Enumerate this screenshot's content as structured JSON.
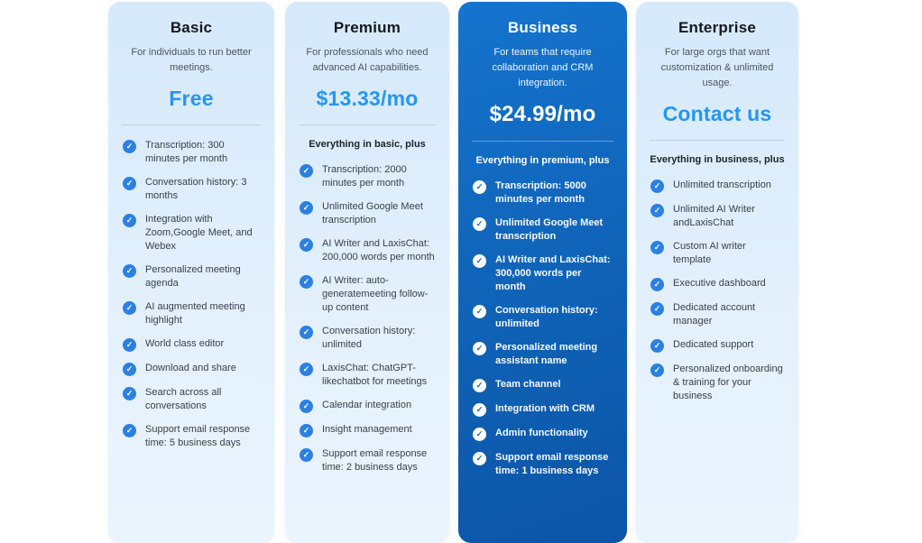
{
  "colors": {
    "accent_blue": "#2596f2",
    "check_circle_blue": "#2b80e4",
    "highlight_gradient_start": "#1574ce",
    "highlight_gradient_end": "#0c55a7",
    "card_background": "#ddedfb"
  },
  "plans": [
    {
      "id": "basic",
      "title": "Basic",
      "description": "For individuals to run better meetings.",
      "price": "Free",
      "includes_note": "",
      "highlighted": false,
      "features": [
        "Transcription: 300 minutes per month",
        "Conversation history: 3 months",
        "Integration with Zoom,Google Meet, and Webex",
        "Personalized meeting agenda",
        "AI augmented meeting highlight",
        "World class editor",
        "Download and share",
        "Search across all conversations",
        "Support email response time: 5 business days"
      ]
    },
    {
      "id": "premium",
      "title": "Premium",
      "description": "For professionals who need advanced AI capabilities.",
      "price": "$13.33/mo",
      "includes_note": "Everything in basic, plus",
      "highlighted": false,
      "features": [
        "Transcription: 2000 minutes per month",
        "Unlimited Google Meet transcription",
        "AI Writer and LaxisChat: 200,000 words per month",
        "AI Writer: auto-generatemeeting follow-up content",
        "Conversation history: unlimited",
        "LaxisChat: ChatGPT-likechatbot for meetings",
        "Calendar integration",
        "Insight management",
        "Support email response time: 2 business days"
      ]
    },
    {
      "id": "business",
      "title": "Business",
      "description": "For teams that require collaboration and CRM integration.",
      "price": "$24.99/mo",
      "includes_note": "Everything in premium, plus",
      "highlighted": true,
      "features": [
        "Transcription: 5000 minutes per month",
        "Unlimited Google Meet transcription",
        "AI Writer and LaxisChat: 300,000 words per month",
        "Conversation history: unlimited",
        "Personalized meeting assistant name",
        "Team channel",
        "Integration with CRM",
        "Admin functionality",
        "Support email response time: 1 business days"
      ]
    },
    {
      "id": "enterprise",
      "title": "Enterprise",
      "description": "For large orgs that want customization & unlimited usage.",
      "price": "Contact us",
      "includes_note": "Everything in business, plus",
      "highlighted": false,
      "features": [
        "Unlimited transcription",
        "Unlimited AI Writer andLaxisChat",
        "Custom AI writer template",
        "Executive dashboard",
        "Dedicated account manager",
        "Dedicated support",
        "Personalized onboarding & training for your business"
      ]
    }
  ]
}
